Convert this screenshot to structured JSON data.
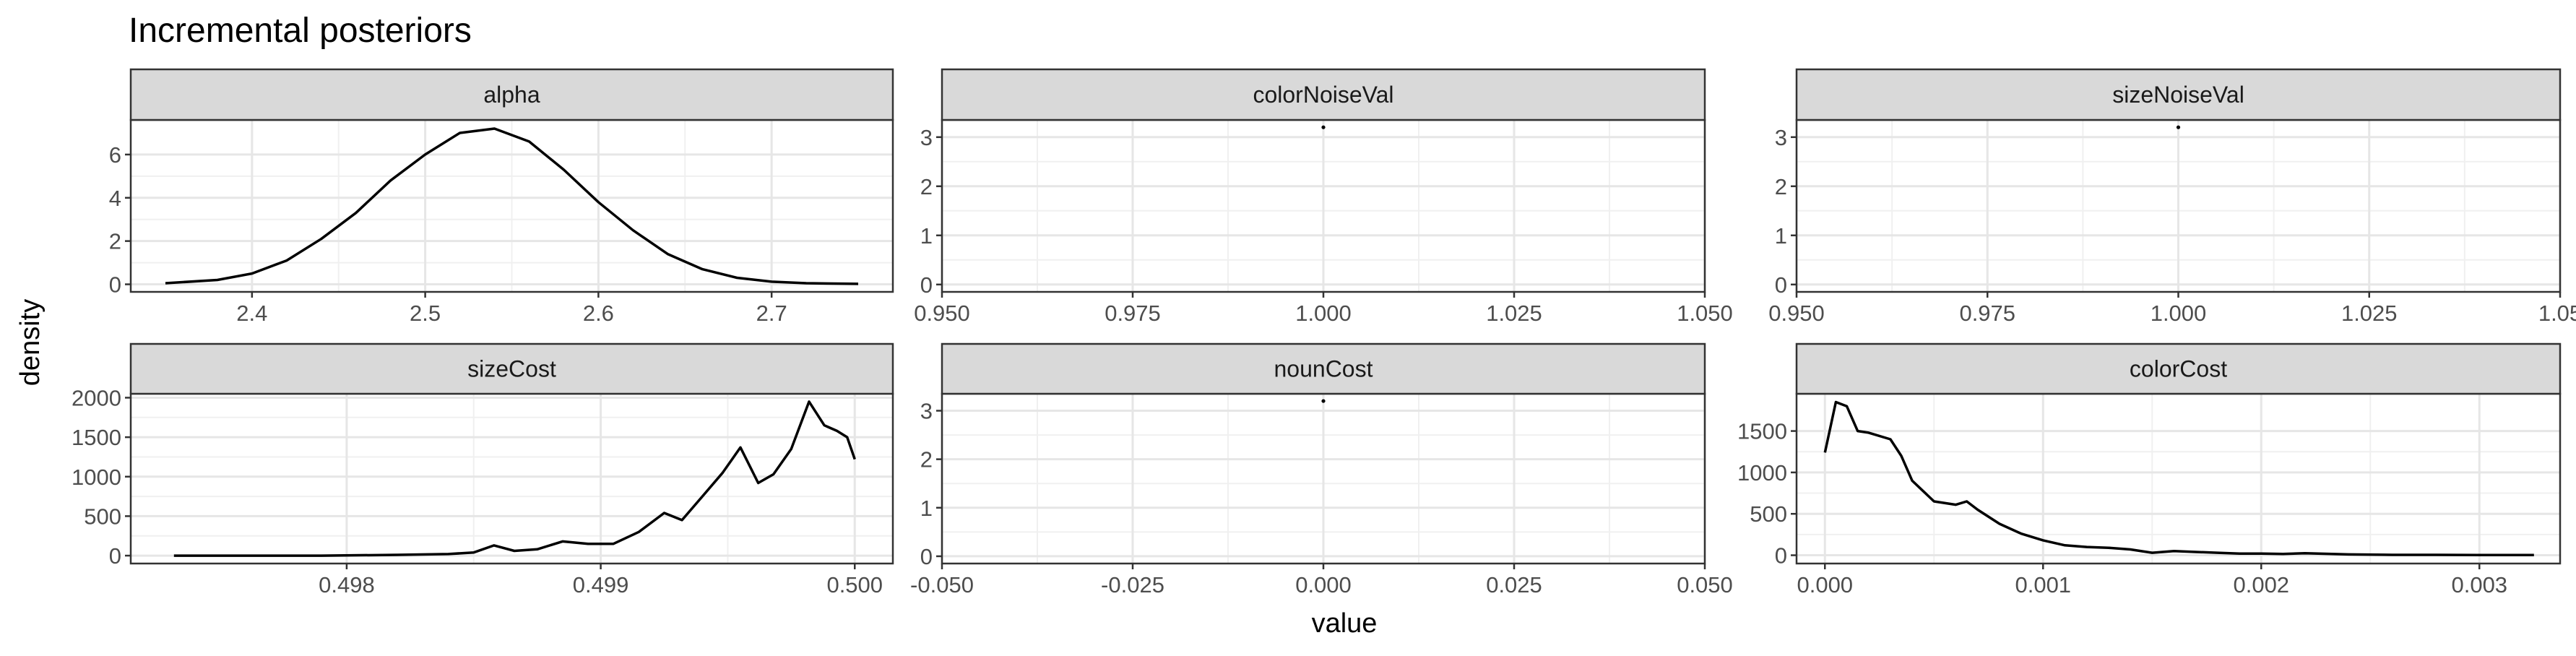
{
  "chart_data": {
    "type": "line",
    "title": "Incremental posteriors",
    "xlabel": "value",
    "ylabel": "density",
    "facets": [
      {
        "name": "alpha",
        "xlim": [
          2.33,
          2.77
        ],
        "ylim": [
          -0.35,
          7.6
        ],
        "xticks": [
          2.4,
          2.5,
          2.6,
          2.7
        ],
        "xtick_labels": [
          "2.4",
          "2.5",
          "2.6",
          "2.7"
        ],
        "yticks": [
          0,
          2,
          4,
          6
        ],
        "ytick_labels": [
          "0",
          "2",
          "4",
          "6"
        ],
        "x": [
          2.35,
          2.38,
          2.4,
          2.42,
          2.44,
          2.46,
          2.48,
          2.5,
          2.52,
          2.54,
          2.56,
          2.58,
          2.6,
          2.62,
          2.64,
          2.66,
          2.68,
          2.7,
          2.72,
          2.75
        ],
        "y": [
          0.05,
          0.2,
          0.5,
          1.1,
          2.1,
          3.3,
          4.8,
          6.0,
          7.0,
          7.2,
          6.6,
          5.3,
          3.8,
          2.5,
          1.4,
          0.7,
          0.3,
          0.12,
          0.05,
          0.02
        ]
      },
      {
        "name": "colorNoiseVal",
        "xlim": [
          0.95,
          1.05
        ],
        "ylim": [
          -0.15,
          3.35
        ],
        "xticks": [
          0.95,
          0.975,
          1.0,
          1.025,
          1.05
        ],
        "xtick_labels": [
          "0.950",
          "0.975",
          "1.000",
          "1.025",
          "1.050"
        ],
        "yticks": [
          0,
          1,
          2,
          3
        ],
        "ytick_labels": [
          "0",
          "1",
          "2",
          "3"
        ],
        "x": [
          1.0
        ],
        "y": [
          3.2
        ]
      },
      {
        "name": "sizeNoiseVal",
        "xlim": [
          0.95,
          1.05
        ],
        "ylim": [
          -0.15,
          3.35
        ],
        "xticks": [
          0.95,
          0.975,
          1.0,
          1.025,
          1.05
        ],
        "xtick_labels": [
          "0.950",
          "0.975",
          "1.000",
          "1.025",
          "1.05"
        ],
        "yticks": [
          0,
          1,
          2,
          3
        ],
        "ytick_labels": [
          "0",
          "1",
          "2",
          "3"
        ],
        "x": [
          1.0
        ],
        "y": [
          3.2
        ]
      },
      {
        "name": "sizeCost",
        "xlim": [
          0.49715,
          0.50015
        ],
        "ylim": [
          -100,
          2050
        ],
        "xticks": [
          0.498,
          0.499,
          0.5
        ],
        "xtick_labels": [
          "0.498",
          "0.499",
          "0.500"
        ],
        "yticks": [
          0,
          500,
          1000,
          1500,
          2000
        ],
        "ytick_labels": [
          "0",
          "500",
          "1000",
          "1500",
          "2000"
        ],
        "x": [
          0.49732,
          0.4976,
          0.4979,
          0.4982,
          0.4984,
          0.4985,
          0.49858,
          0.49866,
          0.49875,
          0.49885,
          0.49895,
          0.49905,
          0.49915,
          0.49925,
          0.49932,
          0.4994,
          0.49948,
          0.49955,
          0.49962,
          0.49968,
          0.49975,
          0.49982,
          0.49988,
          0.49993,
          0.49997,
          0.5
        ],
        "y": [
          0,
          0,
          0,
          10,
          20,
          40,
          130,
          60,
          80,
          180,
          150,
          150,
          300,
          540,
          450,
          750,
          1050,
          1370,
          920,
          1030,
          1350,
          1950,
          1650,
          1580,
          1500,
          1220
        ]
      },
      {
        "name": "nounCost",
        "xlim": [
          -0.05,
          0.05
        ],
        "ylim": [
          -0.15,
          3.35
        ],
        "xticks": [
          -0.05,
          -0.025,
          0.0,
          0.025,
          0.05
        ],
        "xtick_labels": [
          "-0.050",
          "-0.025",
          "0.000",
          "0.025",
          "0.050"
        ],
        "yticks": [
          0,
          1,
          2,
          3
        ],
        "ytick_labels": [
          "0",
          "1",
          "2",
          "3"
        ],
        "x": [
          0.0
        ],
        "y": [
          3.2
        ]
      },
      {
        "name": "colorCost",
        "xlim": [
          -0.00013,
          0.00337
        ],
        "ylim": [
          -100,
          1950
        ],
        "xticks": [
          0.0,
          0.001,
          0.002,
          0.003
        ],
        "xtick_labels": [
          "0.000",
          "0.001",
          "0.002",
          "0.003"
        ],
        "yticks": [
          0,
          500,
          1000,
          1500
        ],
        "ytick_labels": [
          "0",
          "500",
          "1000",
          "1500"
        ],
        "x": [
          0.0,
          5e-05,
          0.0001,
          0.00015,
          0.0002,
          0.0003,
          0.00035,
          0.0004,
          0.0005,
          0.0006,
          0.00065,
          0.0007,
          0.0008,
          0.0009,
          0.001,
          0.0011,
          0.0012,
          0.0013,
          0.0014,
          0.0015,
          0.0016,
          0.0017,
          0.0018,
          0.0019,
          0.002,
          0.0021,
          0.0022,
          0.0024,
          0.0026,
          0.0028,
          0.003,
          0.00325
        ],
        "y": [
          1240,
          1850,
          1800,
          1500,
          1480,
          1400,
          1200,
          900,
          650,
          610,
          650,
          550,
          380,
          260,
          180,
          120,
          100,
          90,
          70,
          30,
          50,
          40,
          30,
          20,
          20,
          15,
          25,
          10,
          5,
          5,
          3,
          2
        ]
      }
    ]
  }
}
